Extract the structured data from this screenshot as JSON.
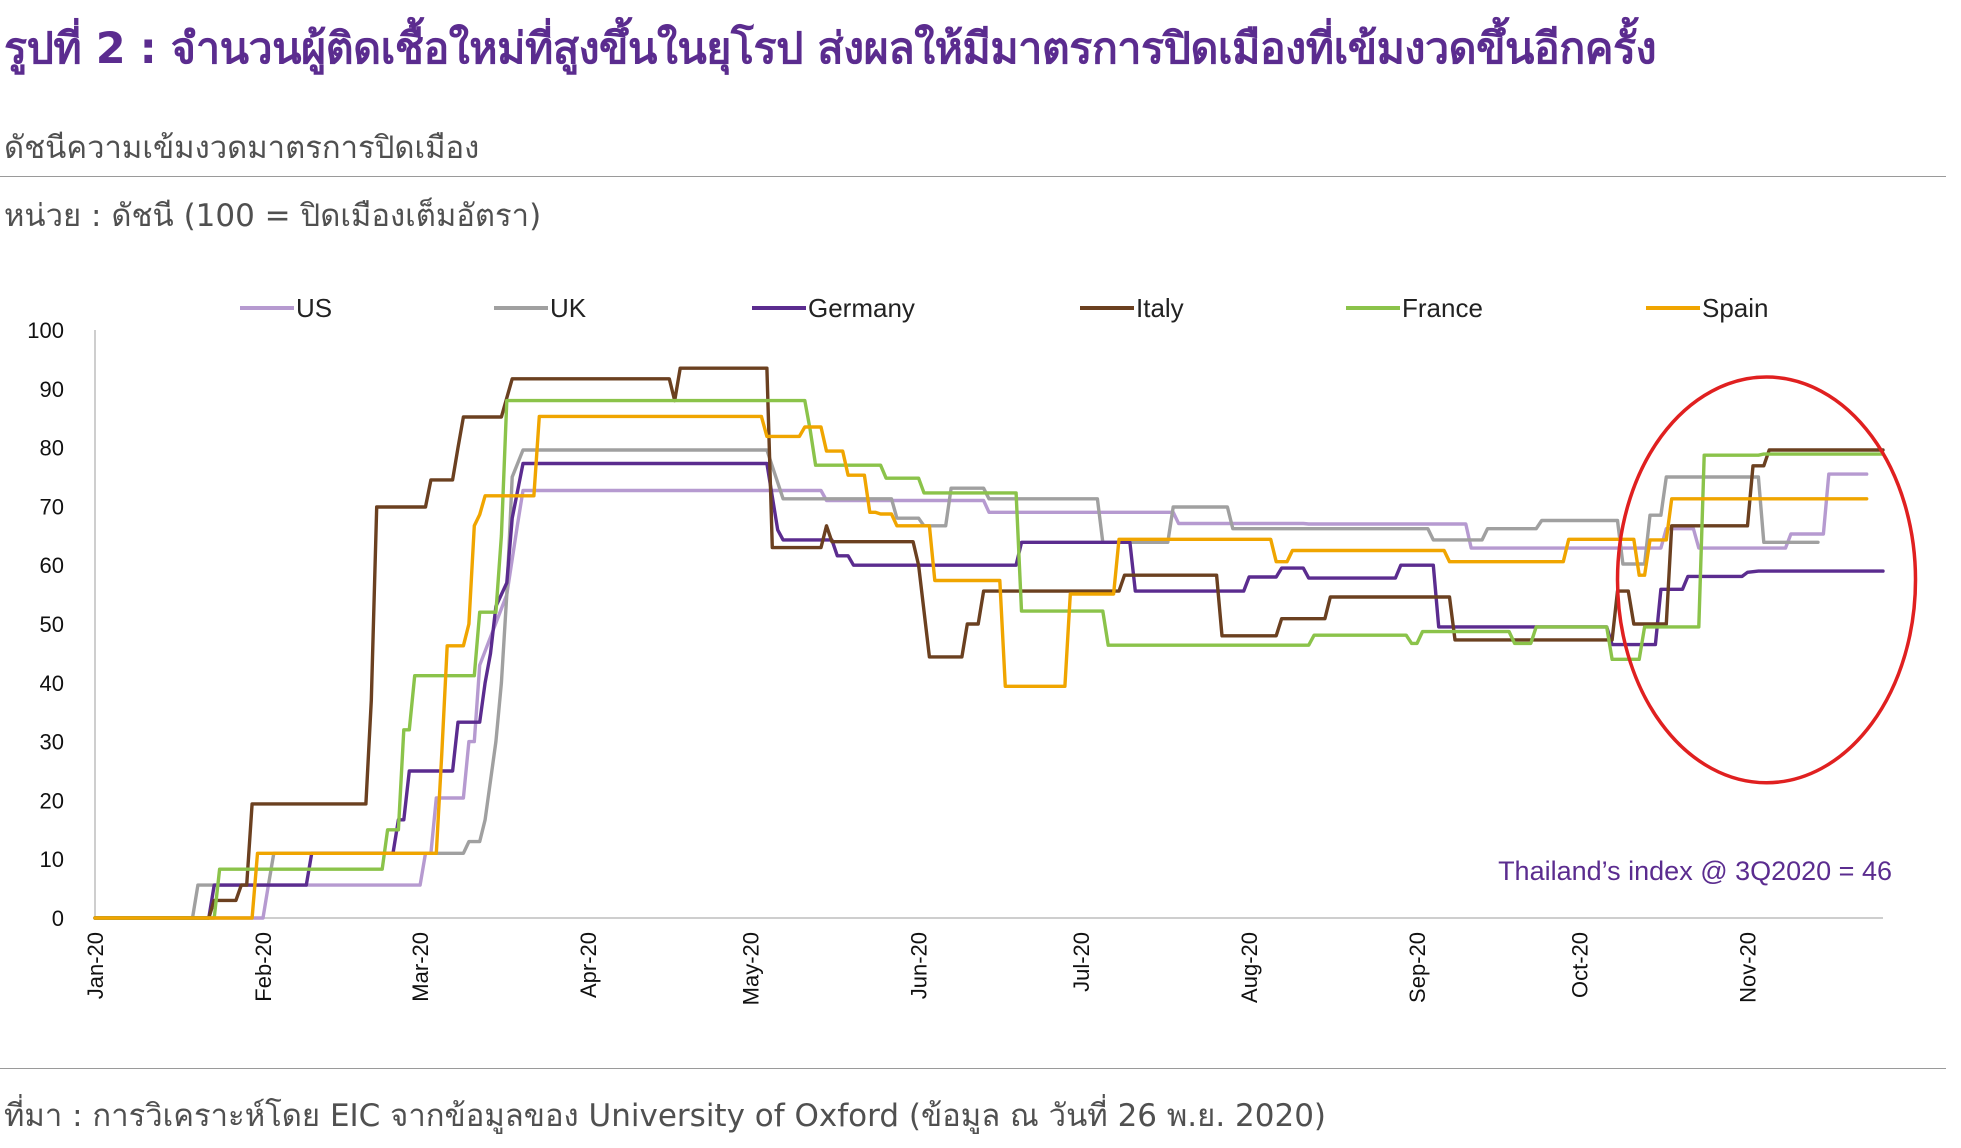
{
  "header": {
    "title": "รูปที่ 2 : จำนวนผู้ติดเชื้อใหม่ที่สูงขึ้นในยุโรป ส่งผลให้มีมาตรการปิดเมืองที่เข้มงวดขึ้นอีกครั้ง",
    "subtitle": "ดัชนีความเข้มงวดมาตรการปิดเมือง",
    "unit": "หน่วย : ดัชนี (100 = ปิดเมืองเต็มอัตรา)"
  },
  "footer": {
    "source": "ที่มา : การวิเคราะห์โดย EIC จากข้อมูลของ University of Oxford (ข้อมูล ณ วันที่ 26 พ.ย. 2020)"
  },
  "chart_data": {
    "type": "line",
    "x_unit": "day of year 2020",
    "xlim": [
      1,
      331
    ],
    "ylim": [
      0,
      100
    ],
    "yticks": [
      0,
      10,
      20,
      30,
      40,
      50,
      60,
      70,
      80,
      90,
      100
    ],
    "xticks": [
      {
        "label": "Jan-20",
        "day": 1
      },
      {
        "label": "Feb-20",
        "day": 32
      },
      {
        "label": "Mar-20",
        "day": 61
      },
      {
        "label": "Apr-20",
        "day": 92
      },
      {
        "label": "May-20",
        "day": 122
      },
      {
        "label": "Jun-20",
        "day": 153
      },
      {
        "label": "Jul-20",
        "day": 183
      },
      {
        "label": "Aug-20",
        "day": 214
      },
      {
        "label": "Sep-20",
        "day": 245
      },
      {
        "label": "Oct-20",
        "day": 275
      },
      {
        "label": "Nov-20",
        "day": 306
      }
    ],
    "legend_position": "top",
    "grid": false,
    "annotation": "Thailand’s index @ 3Q2020 = 46",
    "highlight": {
      "shape": "ellipse",
      "color": "#e02020",
      "x_range": [
        282,
        337
      ],
      "y_range": [
        23,
        92
      ]
    },
    "series": [
      {
        "name": "US",
        "color": "#b69ad0",
        "points": [
          [
            1,
            0
          ],
          [
            32,
            0
          ],
          [
            33,
            5.6
          ],
          [
            39,
            5.6
          ],
          [
            40,
            5.6
          ],
          [
            61,
            5.6
          ],
          [
            62,
            11
          ],
          [
            63,
            11
          ],
          [
            64,
            20.4
          ],
          [
            69,
            20.4
          ],
          [
            70,
            30
          ],
          [
            71,
            30
          ],
          [
            72,
            43
          ],
          [
            77,
            55
          ],
          [
            79,
            67
          ],
          [
            80,
            72.7
          ],
          [
            122,
            72.7
          ],
          [
            123,
            72.7
          ],
          [
            135,
            72.7
          ],
          [
            136,
            71
          ],
          [
            150,
            71
          ],
          [
            151,
            71
          ],
          [
            165,
            71
          ],
          [
            166,
            69
          ],
          [
            178,
            69
          ],
          [
            200,
            69
          ],
          [
            201,
            67.1
          ],
          [
            224,
            67.1
          ],
          [
            225,
            67
          ],
          [
            254,
            67
          ],
          [
            255,
            62.9
          ],
          [
            280,
            62.9
          ],
          [
            281,
            62.9
          ],
          [
            290,
            62.9
          ],
          [
            291,
            66.2
          ],
          [
            296,
            66.2
          ],
          [
            297,
            62.9
          ],
          [
            304,
            62.9
          ],
          [
            305,
            62.9
          ],
          [
            313,
            62.9
          ],
          [
            314,
            65.3
          ],
          [
            320,
            65.3
          ],
          [
            321,
            75.5
          ],
          [
            328,
            75.5
          ]
        ]
      },
      {
        "name": "UK",
        "color": "#a0a0a0",
        "points": [
          [
            1,
            0
          ],
          [
            19,
            0
          ],
          [
            20,
            5.6
          ],
          [
            33,
            5.6
          ],
          [
            34,
            11
          ],
          [
            62,
            11
          ],
          [
            63,
            11
          ],
          [
            69,
            11
          ],
          [
            70,
            13
          ],
          [
            72,
            13
          ],
          [
            73,
            16.7
          ],
          [
            75,
            30
          ],
          [
            76,
            40
          ],
          [
            77,
            55
          ],
          [
            78,
            75
          ],
          [
            80,
            79.6
          ],
          [
            124,
            79.6
          ],
          [
            125,
            79.6
          ],
          [
            128,
            71.3
          ],
          [
            148,
            71.3
          ],
          [
            149,
            68
          ],
          [
            153,
            68
          ],
          [
            154,
            66.7
          ],
          [
            158,
            66.7
          ],
          [
            159,
            73.1
          ],
          [
            165,
            73.1
          ],
          [
            166,
            71.3
          ],
          [
            186,
            71.3
          ],
          [
            187,
            63.9
          ],
          [
            199,
            63.9
          ],
          [
            200,
            69.9
          ],
          [
            210,
            69.9
          ],
          [
            211,
            66.2
          ],
          [
            247,
            66.2
          ],
          [
            248,
            64.3
          ],
          [
            257,
            64.3
          ],
          [
            258,
            66.2
          ],
          [
            267,
            66.2
          ],
          [
            268,
            67.6
          ],
          [
            282,
            67.6
          ],
          [
            283,
            60.2
          ],
          [
            287,
            60.2
          ],
          [
            288,
            68.5
          ],
          [
            290,
            68.5
          ],
          [
            291,
            75
          ],
          [
            308,
            75
          ],
          [
            309,
            63.9
          ],
          [
            319,
            63.9
          ]
        ]
      },
      {
        "name": "Germany",
        "color": "#5b2c8f",
        "points": [
          [
            1,
            0
          ],
          [
            22,
            0
          ],
          [
            23,
            5.6
          ],
          [
            40,
            5.6
          ],
          [
            41,
            11
          ],
          [
            56,
            11
          ],
          [
            57,
            16.7
          ],
          [
            58,
            16.7
          ],
          [
            59,
            25
          ],
          [
            67,
            25
          ],
          [
            68,
            33.3
          ],
          [
            72,
            33.3
          ],
          [
            73,
            40
          ],
          [
            74,
            45
          ],
          [
            75,
            53
          ],
          [
            77,
            57
          ],
          [
            78,
            68
          ],
          [
            80,
            77.3
          ],
          [
            124,
            77.3
          ],
          [
            125,
            77.3
          ],
          [
            127,
            66
          ],
          [
            128,
            64.3
          ],
          [
            137,
            64.3
          ],
          [
            138,
            61.6
          ],
          [
            140,
            61.6
          ],
          [
            141,
            60
          ],
          [
            160,
            60
          ],
          [
            161,
            60
          ],
          [
            171,
            60
          ],
          [
            172,
            63.9
          ],
          [
            192,
            63.9
          ],
          [
            193,
            55.6
          ],
          [
            213,
            55.6
          ],
          [
            214,
            58
          ],
          [
            219,
            58
          ],
          [
            220,
            59.5
          ],
          [
            224,
            59.5
          ],
          [
            225,
            57.8
          ],
          [
            241,
            57.8
          ],
          [
            242,
            60
          ],
          [
            248,
            60
          ],
          [
            249,
            49.5
          ],
          [
            280,
            49.5
          ],
          [
            281,
            46.5
          ],
          [
            289,
            46.5
          ],
          [
            290,
            55.9
          ],
          [
            294,
            55.9
          ],
          [
            295,
            58.1
          ],
          [
            305,
            58.1
          ],
          [
            306,
            58.8
          ],
          [
            308,
            59
          ],
          [
            331,
            59
          ]
        ]
      },
      {
        "name": "Italy",
        "color": "#6b4020",
        "points": [
          [
            1,
            0
          ],
          [
            22,
            0
          ],
          [
            23,
            3
          ],
          [
            27,
            3
          ],
          [
            28,
            5.6
          ],
          [
            29,
            5.6
          ],
          [
            30,
            19.4
          ],
          [
            51,
            19.4
          ],
          [
            52,
            37
          ],
          [
            53,
            69.9
          ],
          [
            62,
            69.9
          ],
          [
            63,
            74.5
          ],
          [
            66,
            74.5
          ],
          [
            67,
            74.5
          ],
          [
            68,
            80
          ],
          [
            69,
            85.2
          ],
          [
            75,
            85.2
          ],
          [
            76,
            85.2
          ],
          [
            78,
            91.7
          ],
          [
            107,
            91.7
          ],
          [
            108,
            88
          ],
          [
            109,
            93.5
          ],
          [
            124,
            93.5
          ],
          [
            125,
            93.5
          ],
          [
            126,
            63
          ],
          [
            135,
            63
          ],
          [
            136,
            66.7
          ],
          [
            137,
            64
          ],
          [
            152,
            64
          ],
          [
            153,
            60
          ],
          [
            155,
            44.4
          ],
          [
            161,
            44.4
          ],
          [
            162,
            50
          ],
          [
            164,
            50
          ],
          [
            165,
            55.6
          ],
          [
            190,
            55.6
          ],
          [
            191,
            58.3
          ],
          [
            208,
            58.3
          ],
          [
            209,
            48
          ],
          [
            219,
            48
          ],
          [
            220,
            50.9
          ],
          [
            228,
            50.9
          ],
          [
            229,
            54.6
          ],
          [
            251,
            54.6
          ],
          [
            252,
            47.3
          ],
          [
            276,
            47.3
          ],
          [
            277,
            47.3
          ],
          [
            281,
            47.3
          ],
          [
            282,
            55.6
          ],
          [
            284,
            55.6
          ],
          [
            285,
            50
          ],
          [
            291,
            50
          ],
          [
            292,
            66.7
          ],
          [
            306,
            66.7
          ],
          [
            307,
            76.9
          ],
          [
            309,
            76.9
          ],
          [
            310,
            79.6
          ],
          [
            331,
            79.6
          ]
        ]
      },
      {
        "name": "France",
        "color": "#8bc34a",
        "points": [
          [
            1,
            0
          ],
          [
            23,
            0
          ],
          [
            24,
            8.3
          ],
          [
            54,
            8.3
          ],
          [
            55,
            15
          ],
          [
            57,
            15
          ],
          [
            58,
            32
          ],
          [
            59,
            32
          ],
          [
            60,
            41.2
          ],
          [
            71,
            41.2
          ],
          [
            72,
            52
          ],
          [
            75,
            52
          ],
          [
            76,
            65
          ],
          [
            77,
            88
          ],
          [
            132,
            88
          ],
          [
            133,
            83
          ],
          [
            134,
            77
          ],
          [
            136,
            77
          ],
          [
            137,
            77
          ],
          [
            146,
            77
          ],
          [
            147,
            74.8
          ],
          [
            153,
            74.8
          ],
          [
            154,
            72.3
          ],
          [
            171,
            72.3
          ],
          [
            172,
            52.2
          ],
          [
            187,
            52.2
          ],
          [
            188,
            46.4
          ],
          [
            211,
            46.4
          ],
          [
            212,
            46.4
          ],
          [
            225,
            46.4
          ],
          [
            226,
            48.1
          ],
          [
            243,
            48.1
          ],
          [
            244,
            46.7
          ],
          [
            245,
            46.7
          ],
          [
            246,
            48.7
          ],
          [
            262,
            48.7
          ],
          [
            263,
            46.7
          ],
          [
            266,
            46.7
          ],
          [
            267,
            49.5
          ],
          [
            280,
            49.5
          ],
          [
            281,
            44
          ],
          [
            286,
            44
          ],
          [
            287,
            49.5
          ],
          [
            297,
            49.5
          ],
          [
            298,
            78.7
          ],
          [
            308,
            78.7
          ],
          [
            309,
            78.9
          ],
          [
            331,
            78.9
          ]
        ]
      },
      {
        "name": "Spain",
        "color": "#f0a500",
        "points": [
          [
            1,
            0
          ],
          [
            30,
            0
          ],
          [
            31,
            11
          ],
          [
            62,
            11
          ],
          [
            63,
            11
          ],
          [
            64,
            11
          ],
          [
            65,
            28
          ],
          [
            66,
            46.3
          ],
          [
            69,
            46.3
          ],
          [
            70,
            50
          ],
          [
            71,
            66.7
          ],
          [
            72,
            68.6
          ],
          [
            73,
            71.8
          ],
          [
            82,
            71.8
          ],
          [
            83,
            85.3
          ],
          [
            123,
            85.3
          ],
          [
            124,
            85.3
          ],
          [
            125,
            81.9
          ],
          [
            131,
            81.9
          ],
          [
            132,
            83.5
          ],
          [
            135,
            83.5
          ],
          [
            136,
            79.4
          ],
          [
            139,
            79.4
          ],
          [
            140,
            75.3
          ],
          [
            143,
            75.3
          ],
          [
            144,
            69
          ],
          [
            145,
            69
          ],
          [
            146,
            68.7
          ],
          [
            148,
            68.7
          ],
          [
            149,
            66.7
          ],
          [
            155,
            66.7
          ],
          [
            156,
            57.4
          ],
          [
            168,
            57.4
          ],
          [
            169,
            39.4
          ],
          [
            180,
            39.4
          ],
          [
            181,
            55.1
          ],
          [
            189,
            55.1
          ],
          [
            190,
            64.4
          ],
          [
            209,
            64.4
          ],
          [
            210,
            64.4
          ],
          [
            218,
            64.4
          ],
          [
            219,
            60.6
          ],
          [
            221,
            60.6
          ],
          [
            222,
            62.5
          ],
          [
            250,
            62.5
          ],
          [
            251,
            60.6
          ],
          [
            272,
            60.6
          ],
          [
            273,
            64.4
          ],
          [
            285,
            64.4
          ],
          [
            286,
            58.3
          ],
          [
            287,
            58.3
          ],
          [
            288,
            64.3
          ],
          [
            291,
            64.3
          ],
          [
            292,
            71.3
          ],
          [
            328,
            71.3
          ]
        ]
      }
    ]
  }
}
